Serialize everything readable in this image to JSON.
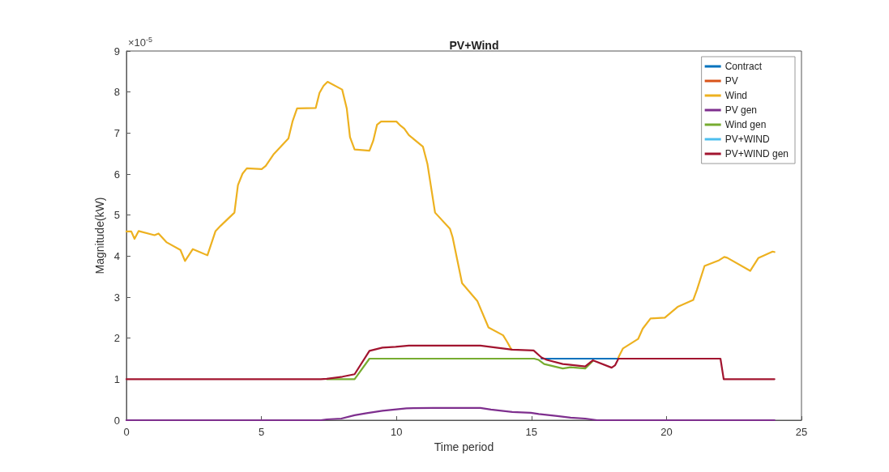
{
  "chart_data": {
    "type": "line",
    "title": "PV+Wind",
    "xlabel": "Time period",
    "ylabel": "Magnitude(kW)",
    "annotations": [
      "×10$^{-5}$"
    ],
    "xlim": [
      0,
      25
    ],
    "xticks": [
      0,
      5,
      10,
      15,
      20,
      25
    ],
    "ylim": [
      0,
      9
    ],
    "yticks": [
      0,
      1,
      2,
      3,
      4,
      5,
      6,
      7,
      8,
      9
    ],
    "grid": false,
    "legend": "top right",
    "marker": "none",
    "line_style": "solid",
    "series": [
      {
        "name": "Contract",
        "color": "#0072bd",
        "x": [
          15.37,
          18.22
        ],
        "values": [
          1.5,
          1.5
        ]
      },
      {
        "name": "PV",
        "color": "#d95319"
      },
      {
        "name": "Wind",
        "color": "#edb120",
        "x": [
          0,
          0.18,
          0.3,
          0.45,
          1.04,
          1.19,
          1.48,
          2.0,
          2.17,
          2.46,
          3.0,
          3.3,
          3.49,
          4.0,
          4.13,
          4.3,
          4.46,
          5.01,
          5.16,
          5.46,
          6.0,
          6.15,
          6.32,
          7.01,
          7.15,
          7.3,
          7.45,
          7.99,
          8.16,
          8.28,
          8.45,
          9.0,
          9.14,
          9.28,
          9.43,
          10.0,
          10.15,
          10.29,
          10.46,
          10.98,
          11.15,
          11.43,
          11.98,
          12.08,
          12.43,
          13.0,
          13.41,
          13.95,
          14.1,
          14.26,
          14.5,
          15.0,
          15.3,
          15.5,
          16.0,
          16.5,
          17.0,
          17.3,
          17.8,
          18.0,
          18.22,
          18.39,
          18.95,
          19.12,
          19.41,
          19.94,
          20.43,
          20.99,
          21.13,
          21.41,
          21.95,
          22.14,
          22.25,
          23.1,
          23.4,
          23.93,
          24
        ],
        "values": [
          4.6,
          4.6,
          4.42,
          4.61,
          4.51,
          4.55,
          4.34,
          4.15,
          3.88,
          4.17,
          4.02,
          4.61,
          4.74,
          5.06,
          5.73,
          6.01,
          6.14,
          6.12,
          6.2,
          6.49,
          6.87,
          7.28,
          7.6,
          7.61,
          7.98,
          8.15,
          8.25,
          8.06,
          7.6,
          6.9,
          6.6,
          6.57,
          6.81,
          7.2,
          7.28,
          7.28,
          7.18,
          7.11,
          6.95,
          6.67,
          6.24,
          5.06,
          4.67,
          4.46,
          3.34,
          2.9,
          2.26,
          2.07,
          1.91,
          1.72,
          null,
          null,
          null,
          null,
          null,
          null,
          null,
          null,
          null,
          null,
          1.53,
          1.75,
          1.98,
          2.23,
          2.48,
          2.5,
          2.77,
          2.93,
          3.18,
          3.76,
          3.9,
          3.98,
          3.96,
          3.64,
          3.95,
          4.11,
          4.1
        ]
      },
      {
        "name": "PV gen",
        "color": "#7e2f8e",
        "x": [
          0,
          7.2,
          7.42,
          7.96,
          8.45,
          8.89,
          9.48,
          10.37,
          11.35,
          13.11,
          13.5,
          14.29,
          14.98,
          15.27,
          15.96,
          16.45,
          16.99,
          17.43,
          24
        ],
        "values": [
          0,
          0,
          0.02,
          0.04,
          0.12,
          0.17,
          0.23,
          0.29,
          0.3,
          0.3,
          0.26,
          0.2,
          0.18,
          0.15,
          0.1,
          0.06,
          0.04,
          0,
          0
        ]
      },
      {
        "name": "Wind gen",
        "color": "#77ac30",
        "x": [
          7.42,
          8.45,
          9,
          15.1,
          15.27,
          15.47,
          16.16,
          16.45,
          16.99,
          17.27
        ],
        "values": [
          1,
          1,
          1.5,
          1.5,
          1.47,
          1.37,
          1.26,
          1.29,
          1.26,
          1.44
        ]
      },
      {
        "name": "PV+WIND",
        "color": "#4dbeee"
      },
      {
        "name": "PV+WIND gen",
        "color": "#a2142f",
        "x": [
          0,
          7.2,
          7.42,
          8.0,
          8.45,
          9.0,
          9.48,
          9.97,
          10.46,
          11.54,
          13.11,
          13.46,
          14.29,
          15.08,
          15.37,
          15.57,
          16.16,
          16.45,
          16.99,
          17.27,
          17.97,
          18.1,
          18.22,
          22,
          22.12,
          24
        ],
        "values": [
          1,
          1,
          1.01,
          1.06,
          1.12,
          1.69,
          1.77,
          1.79,
          1.82,
          1.82,
          1.82,
          1.79,
          1.72,
          1.7,
          1.53,
          1.47,
          1.37,
          1.35,
          1.31,
          1.46,
          1.28,
          1.34,
          1.5,
          1.5,
          1,
          1
        ]
      }
    ]
  }
}
